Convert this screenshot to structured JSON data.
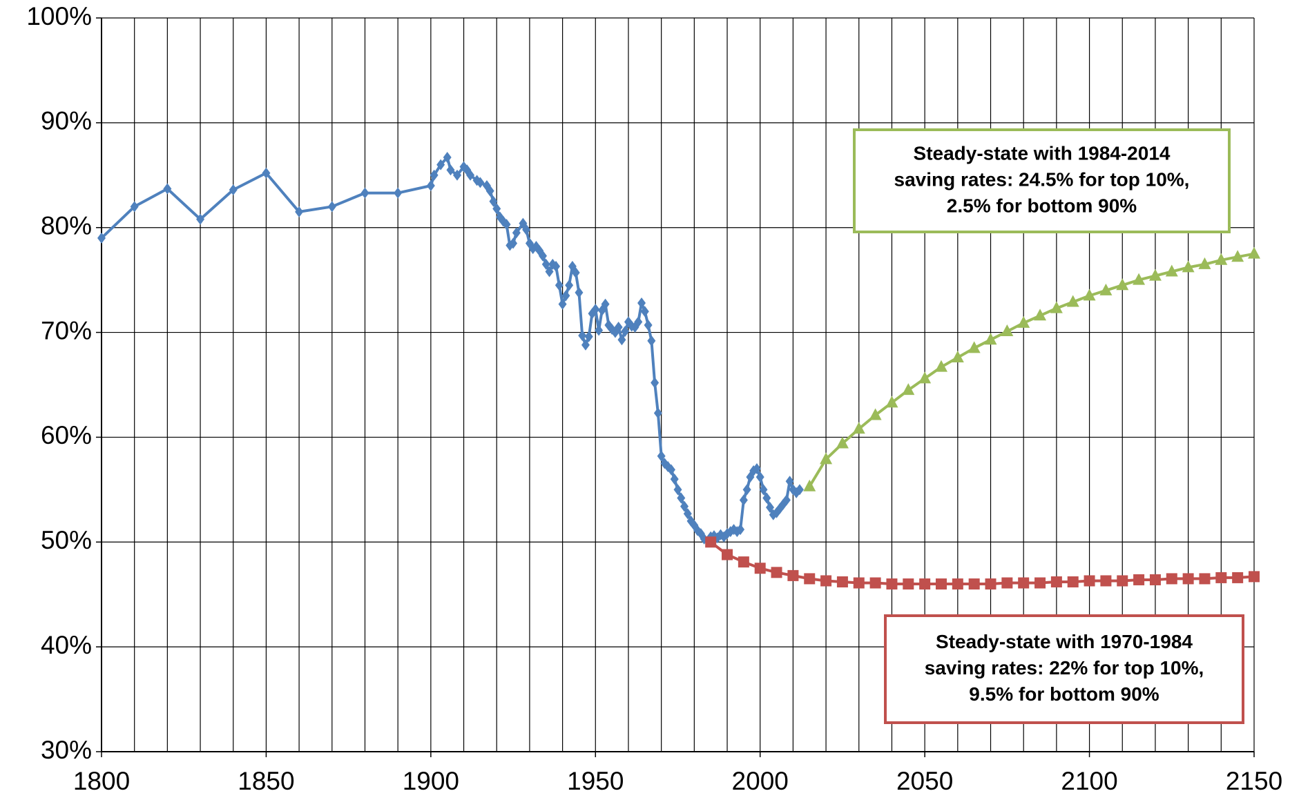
{
  "chart_data": {
    "type": "line",
    "xlim": [
      1800,
      2150
    ],
    "xticks": [
      1800,
      1850,
      1900,
      1950,
      2000,
      2050,
      2100,
      2150
    ],
    "x_gridlines": [
      1800,
      1810,
      1820,
      1830,
      1840,
      1850,
      1860,
      1870,
      1880,
      1890,
      1900,
      1910,
      1920,
      1930,
      1940,
      1950,
      1960,
      1970,
      1980,
      1990,
      2000,
      2010,
      2020,
      2030,
      2040,
      2050,
      2060,
      2070,
      2080,
      2090,
      2100,
      2110,
      2120,
      2130,
      2140,
      2150
    ],
    "ylim": [
      30,
      100
    ],
    "yticks": [
      {
        "value": 30,
        "label": "30%"
      },
      {
        "value": 40,
        "label": "40%"
      },
      {
        "value": 50,
        "label": "50%"
      },
      {
        "value": 60,
        "label": "60%"
      },
      {
        "value": 70,
        "label": "70%"
      },
      {
        "value": 80,
        "label": "80%"
      },
      {
        "value": 90,
        "label": "90%"
      },
      {
        "value": 100,
        "label": "100%"
      }
    ],
    "grid": true,
    "series": [
      {
        "color": "#4f81bd",
        "marker": "diamond",
        "x": [
          1800,
          1810,
          1820,
          1830,
          1840,
          1850,
          1860,
          1870,
          1880,
          1890,
          1900,
          1901,
          1903,
          1905,
          1906,
          1908,
          1910,
          1911,
          1912,
          1914,
          1915,
          1917,
          1918,
          1919,
          1920,
          1921,
          1922,
          1923,
          1924,
          1925,
          1926,
          1928,
          1929,
          1930,
          1931,
          1932,
          1933,
          1934,
          1935,
          1936,
          1937,
          1938,
          1939,
          1940,
          1941,
          1942,
          1943,
          1944,
          1945,
          1946,
          1947,
          1948,
          1949,
          1950,
          1951,
          1952,
          1953,
          1954,
          1955,
          1956,
          1957,
          1958,
          1959,
          1960,
          1961,
          1962,
          1963,
          1964,
          1965,
          1966,
          1967,
          1968,
          1969,
          1970,
          1971,
          1972,
          1973,
          1974,
          1975,
          1976,
          1977,
          1978,
          1979,
          1980,
          1981,
          1982,
          1983,
          1985,
          1986,
          1987,
          1988,
          1989,
          1990,
          1991,
          1992,
          1993,
          1994,
          1995,
          1996,
          1997,
          1998,
          1999,
          2000,
          2001,
          2002,
          2003,
          2004,
          2005,
          2006,
          2007,
          2008,
          2009,
          2010,
          2011,
          2012
        ],
        "values": [
          79,
          82,
          83.7,
          80.8,
          83.6,
          85.2,
          81.5,
          82,
          83.3,
          83.3,
          84,
          85,
          86,
          86.7,
          85.5,
          85,
          85.8,
          85.5,
          85,
          84.5,
          84.3,
          84,
          83.5,
          82.5,
          81.8,
          81,
          80.6,
          80.3,
          78.3,
          78.5,
          79.5,
          80.4,
          79.8,
          78.5,
          78,
          78.2,
          77.8,
          77.3,
          76.5,
          75.8,
          76.5,
          76.3,
          74.5,
          72.7,
          73.5,
          74.5,
          76.3,
          75.7,
          73.8,
          69.7,
          68.8,
          69.6,
          71.8,
          72.2,
          70.2,
          72.1,
          72.7,
          70.7,
          70.3,
          70,
          70.5,
          69.3,
          70.1,
          71,
          70.6,
          70.5,
          71,
          72.8,
          72,
          70.7,
          69.2,
          65.2,
          62.3,
          58.2,
          57.5,
          57.2,
          56.9,
          56,
          55,
          54.2,
          53.4,
          52.7,
          52,
          51.6,
          51.1,
          50.8,
          50.3,
          50.5,
          50.6,
          50.4,
          50.7,
          50.5,
          50.8,
          51,
          51.2,
          51,
          51.2,
          54,
          55,
          56.2,
          56.8,
          57,
          56.2,
          55,
          54.2,
          53.3,
          52.6,
          52.8,
          53.2,
          53.6,
          54,
          55.8,
          55,
          54.7,
          55
        ]
      },
      {
        "color": "#c0504d",
        "marker": "square",
        "x": [
          1985,
          1990,
          1995,
          2000,
          2005,
          2010,
          2015,
          2020,
          2025,
          2030,
          2035,
          2040,
          2045,
          2050,
          2055,
          2060,
          2065,
          2070,
          2075,
          2080,
          2085,
          2090,
          2095,
          2100,
          2105,
          2110,
          2115,
          2120,
          2125,
          2130,
          2135,
          2140,
          2145,
          2150
        ],
        "values": [
          50,
          48.8,
          48.1,
          47.5,
          47.1,
          46.8,
          46.5,
          46.3,
          46.2,
          46.1,
          46.1,
          46,
          46,
          46,
          46,
          46,
          46,
          46,
          46.1,
          46.1,
          46.1,
          46.2,
          46.2,
          46.3,
          46.3,
          46.3,
          46.4,
          46.4,
          46.5,
          46.5,
          46.5,
          46.6,
          46.6,
          46.7
        ]
      },
      {
        "color": "#9bbb59",
        "marker": "triangle",
        "x": [
          2015,
          2020,
          2025,
          2030,
          2035,
          2040,
          2045,
          2050,
          2055,
          2060,
          2065,
          2070,
          2075,
          2080,
          2085,
          2090,
          2095,
          2100,
          2105,
          2110,
          2115,
          2120,
          2125,
          2130,
          2135,
          2140,
          2145,
          2150
        ],
        "values": [
          55.3,
          57.9,
          59.4,
          60.8,
          62.1,
          63.3,
          64.5,
          65.6,
          66.7,
          67.6,
          68.5,
          69.3,
          70.1,
          70.9,
          71.6,
          72.3,
          72.9,
          73.5,
          74,
          74.5,
          75,
          75.4,
          75.8,
          76.2,
          76.5,
          76.9,
          77.2,
          77.5
        ]
      }
    ],
    "annotations": [
      {
        "color": "#9bbb59",
        "lines": [
          "Steady-state with 1984-2014",
          "saving rates: 24.5% for top 10%,",
          "2.5% for bottom 90%"
        ]
      },
      {
        "color": "#c0504d",
        "lines": [
          "Steady-state with 1970-1984",
          "saving rates: 22% for top 10%,",
          "9.5% for bottom 90%"
        ]
      }
    ]
  }
}
